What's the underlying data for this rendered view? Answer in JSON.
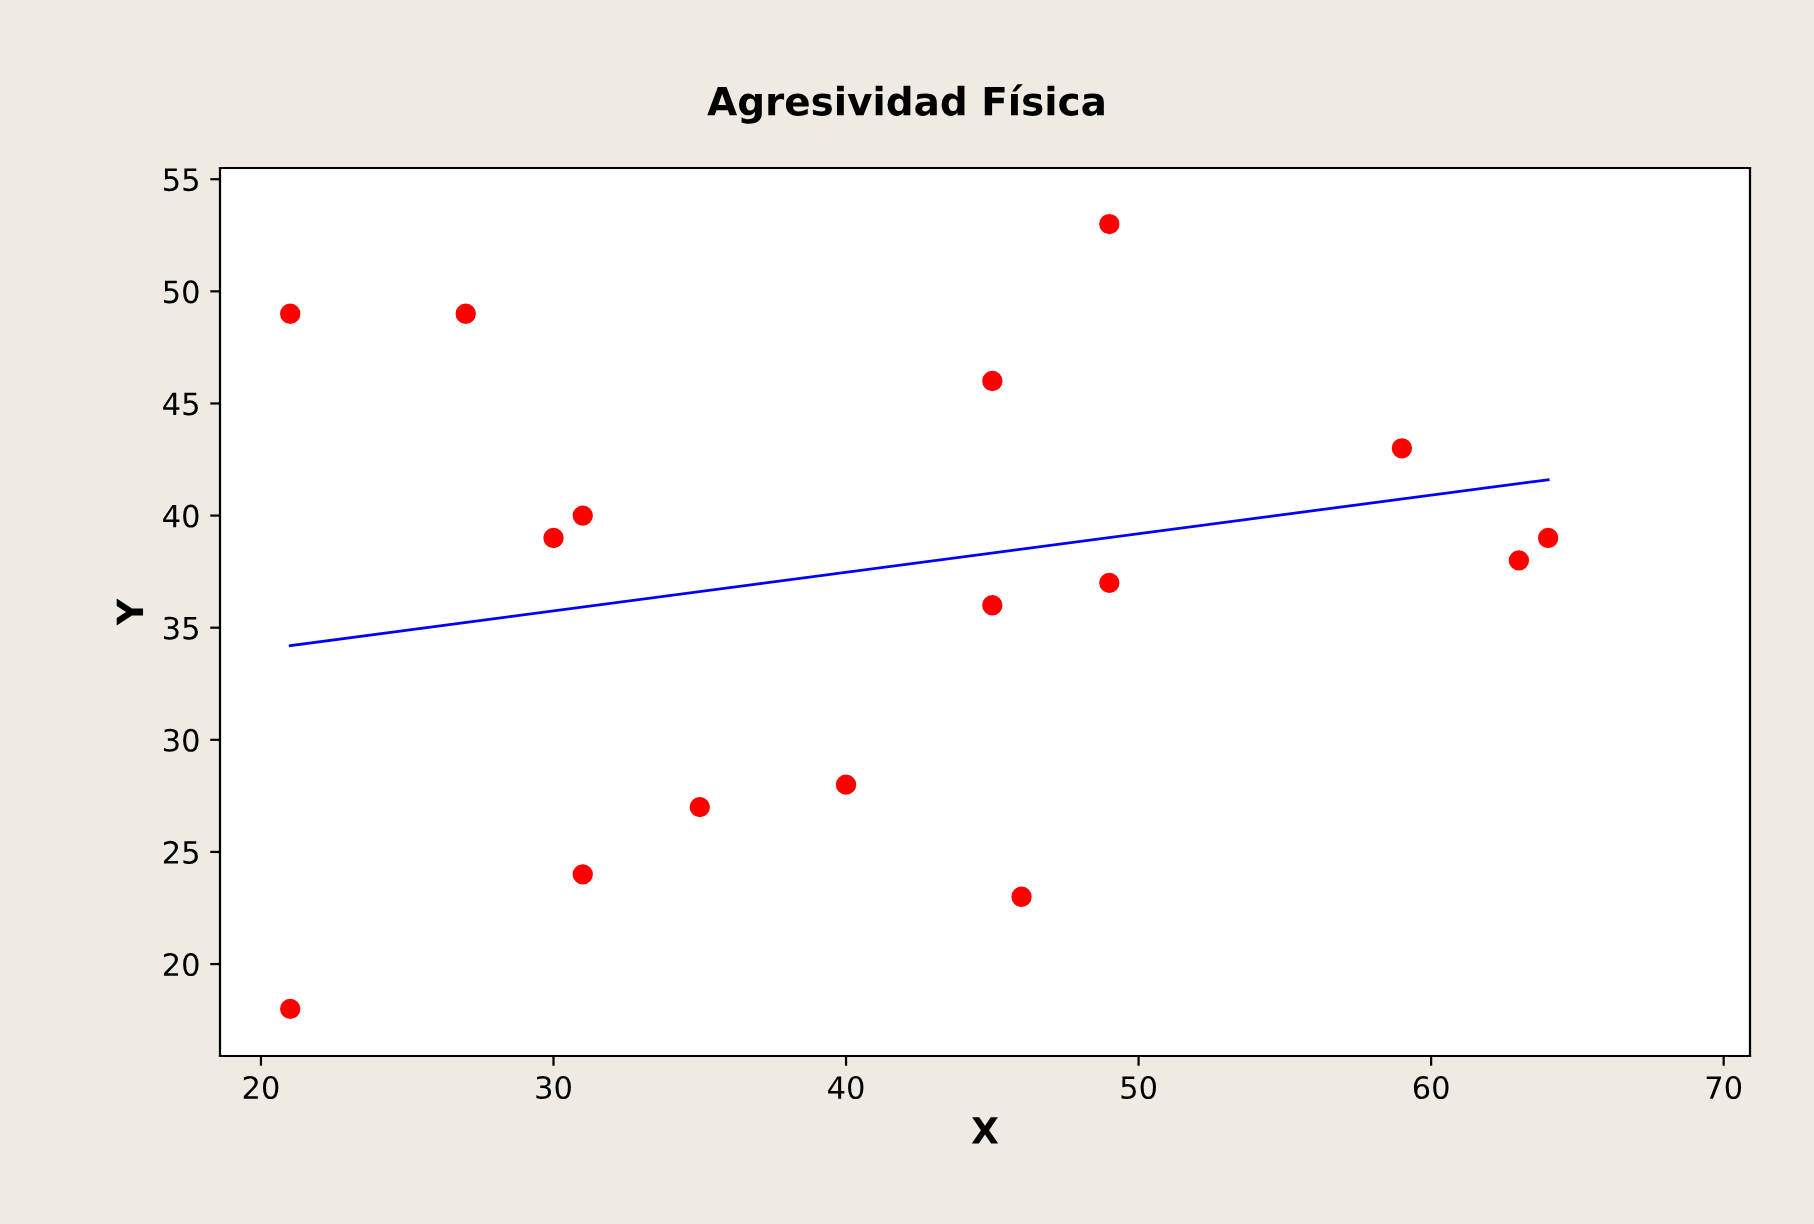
{
  "chart_data": {
    "type": "scatter",
    "title": "Agresividad Física",
    "xlabel": "X",
    "ylabel": "Y",
    "xlim": [
      18.6,
      70.9
    ],
    "ylim": [
      15.9,
      55.5
    ],
    "xticks": [
      20,
      30,
      40,
      50,
      60,
      70
    ],
    "yticks": [
      20,
      25,
      30,
      35,
      40,
      45,
      50,
      55
    ],
    "grid": false,
    "series": [
      {
        "color": "#ff0000",
        "marker": "circle",
        "x": [
          21,
          21,
          27,
          30,
          31,
          31,
          35,
          40,
          45,
          45,
          46,
          49,
          49,
          59,
          63,
          64
        ],
        "values": [
          18,
          49,
          49,
          39,
          40,
          24,
          27,
          28,
          46,
          36,
          23,
          53,
          37,
          43,
          38,
          39
        ]
      },
      {
        "type": "line",
        "color": "#0000ff",
        "marker": "none",
        "x": [
          21,
          64
        ],
        "values": [
          34.2,
          41.6
        ],
        "line_style": "solid"
      }
    ]
  }
}
